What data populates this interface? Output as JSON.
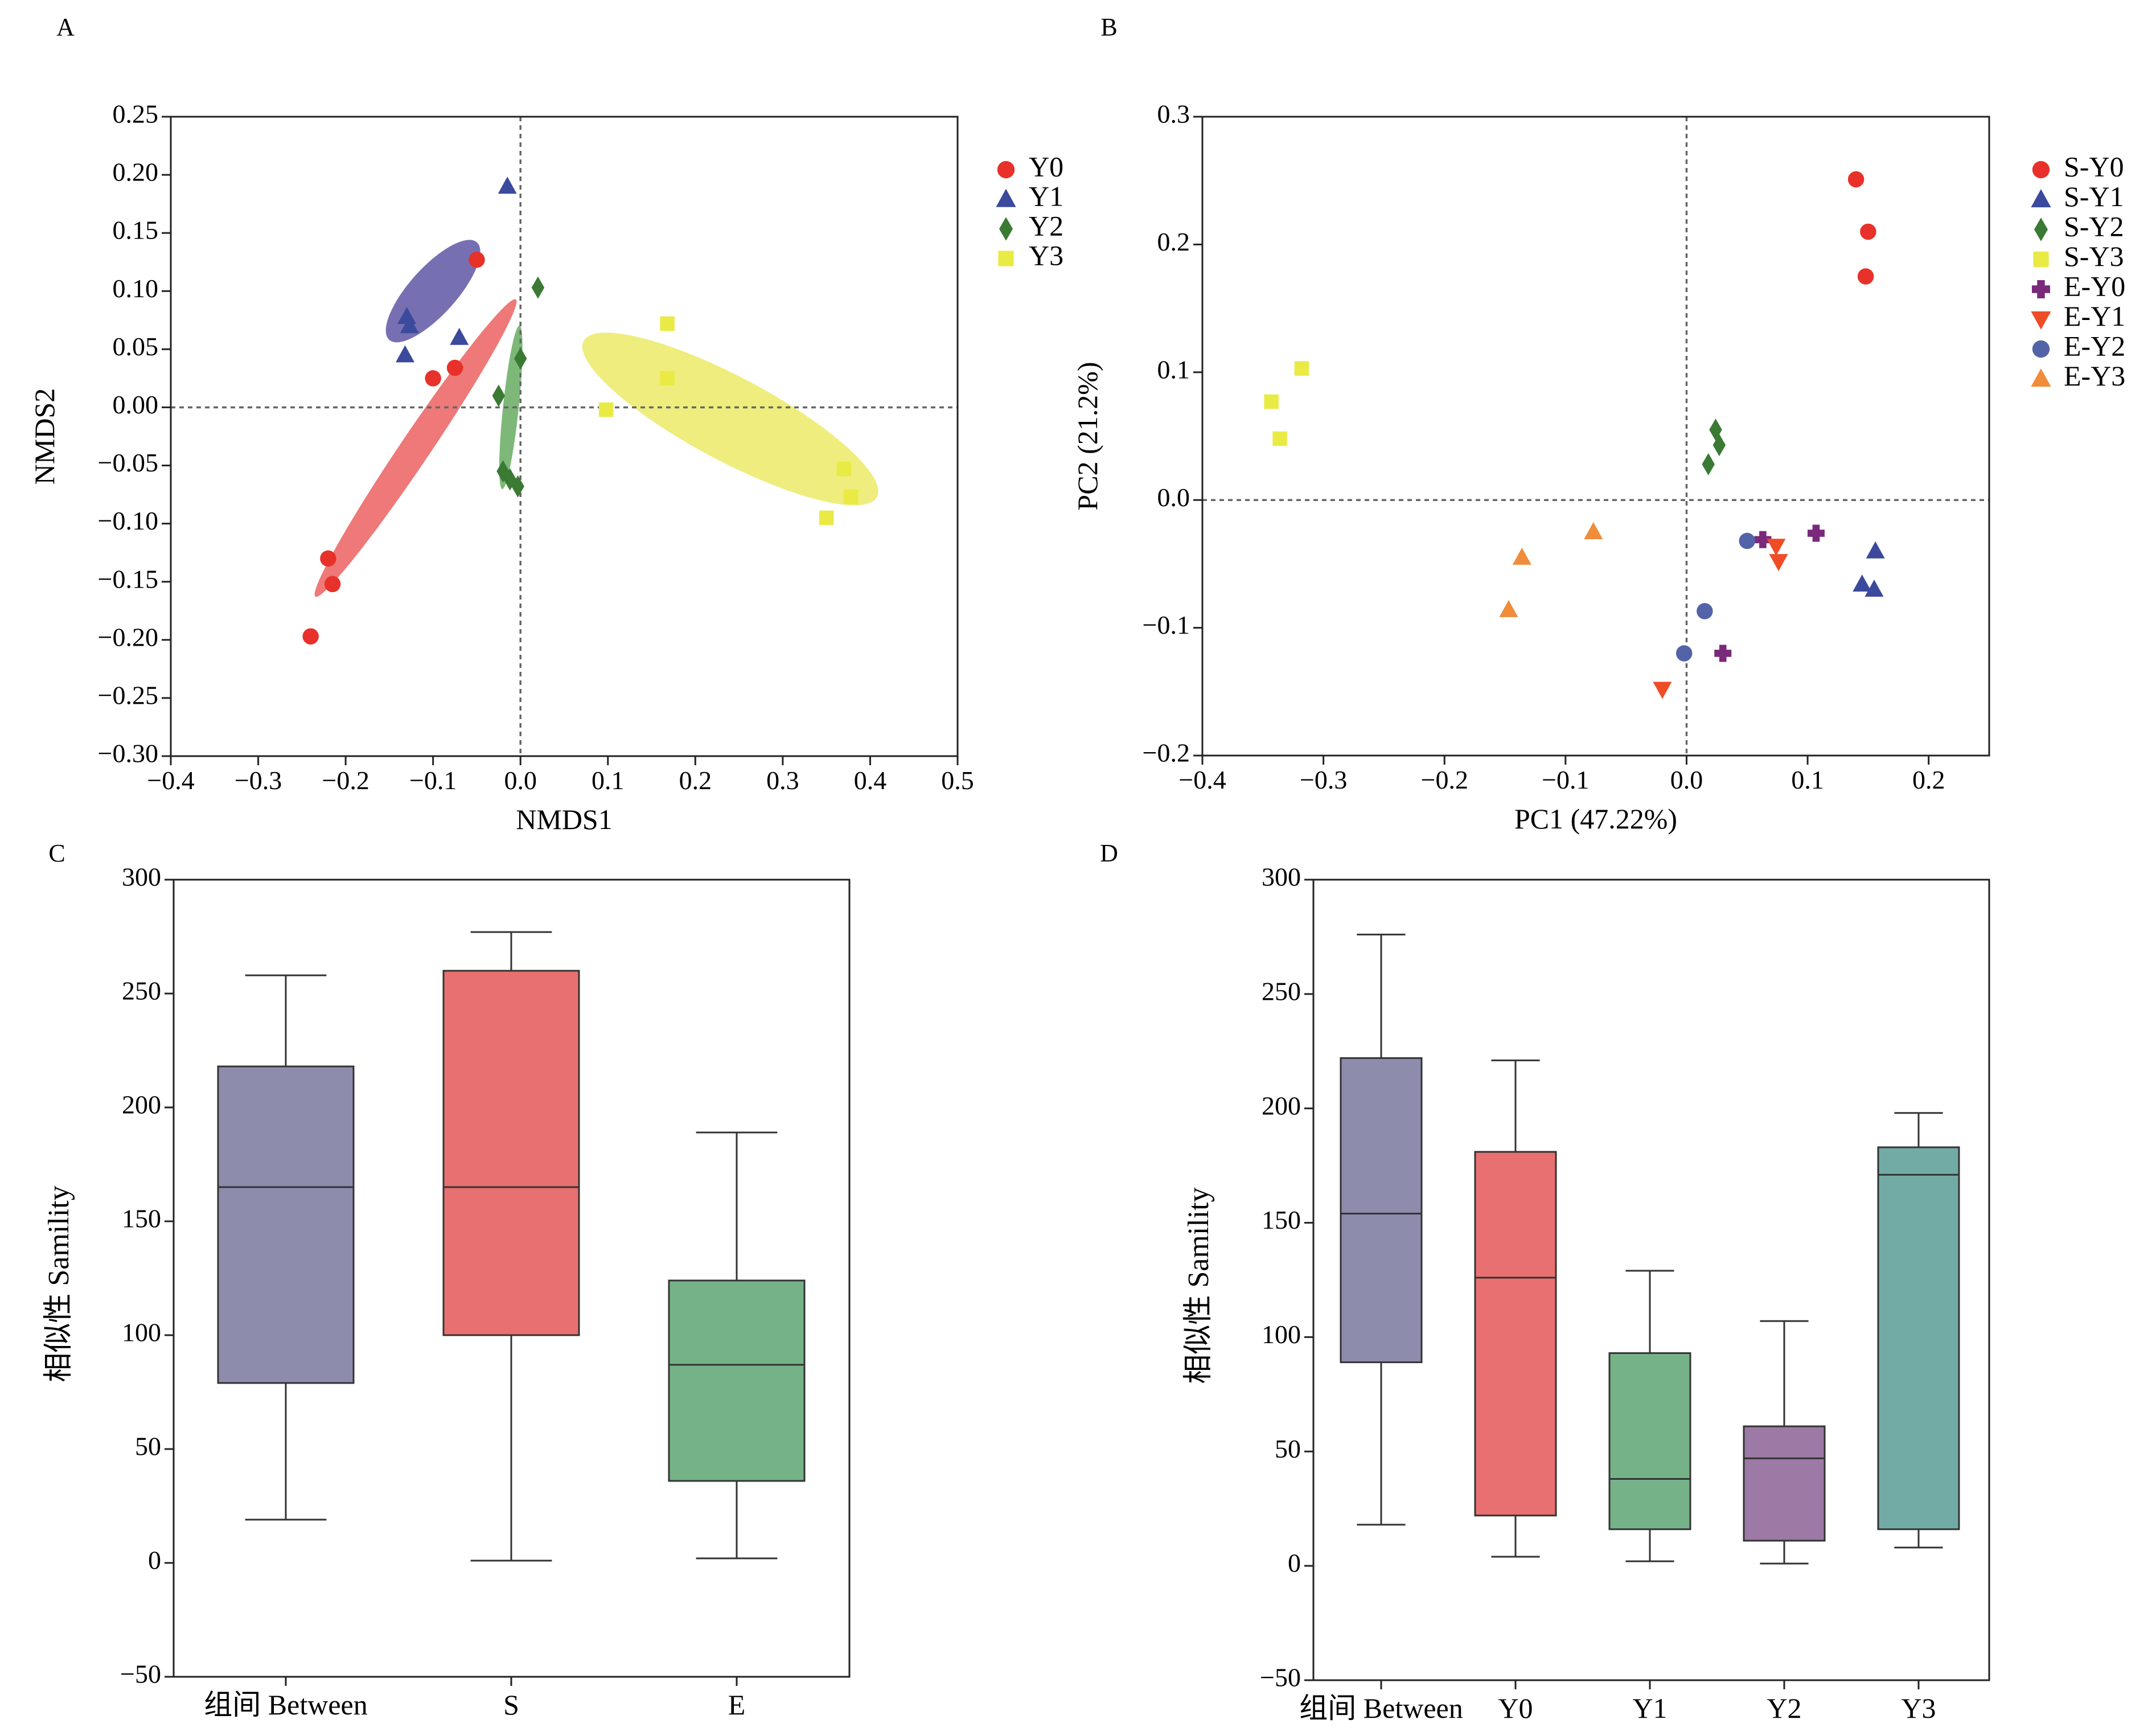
{
  "chart_data": [
    {
      "panel": "A",
      "type": "scatter",
      "xlabel": "NMDS1",
      "ylabel": "NMDS2",
      "xlim": [
        -0.4,
        0.5
      ],
      "ylim": [
        -0.3,
        0.25
      ],
      "xticks": [
        -0.4,
        -0.3,
        -0.2,
        -0.1,
        0.0,
        0.1,
        0.2,
        0.3,
        0.4,
        0.5
      ],
      "yticks": [
        0.25,
        0.2,
        0.15,
        0.1,
        0.05,
        0.0,
        -0.05,
        -0.1,
        -0.15,
        -0.2,
        -0.25,
        -0.3
      ],
      "xtick_labels": [
        "−0.4",
        "−0.3",
        "−0.2",
        "−0.1",
        "0.0",
        "0.1",
        "0.2",
        "0.3",
        "0.4",
        "0.5"
      ],
      "ytick_labels": [
        "0.25",
        "0.20",
        "0.15",
        "0.10",
        "0.05",
        "0.00",
        "−0.05",
        "−0.10",
        "−0.15",
        "−0.20",
        "−0.25",
        "−0.30"
      ],
      "legend_position": "right",
      "series": [
        {
          "name": "Y0",
          "marker": "circle",
          "color": "#e8312a",
          "ellipse_color": "#ee6d6d",
          "points": [
            [
              -0.05,
              0.127
            ],
            [
              -0.1,
              0.025
            ],
            [
              -0.075,
              0.034
            ],
            [
              -0.22,
              -0.13
            ],
            [
              -0.215,
              -0.152
            ],
            [
              -0.24,
              -0.197
            ]
          ],
          "ellipse": {
            "cx": -0.12,
            "cy": -0.035,
            "a": 0.205,
            "b": 0.017,
            "angle_deg": 56
          }
        },
        {
          "name": "Y1",
          "marker": "triangle-up",
          "color": "#3b4a9c",
          "ellipse_color": "#6a64ad",
          "points": [
            [
              -0.015,
              0.19
            ],
            [
              -0.13,
              0.078
            ],
            [
              -0.127,
              0.07
            ],
            [
              -0.132,
              0.045
            ],
            [
              -0.07,
              0.06
            ]
          ],
          "ellipse": {
            "cx": -0.1,
            "cy": 0.1,
            "a": 0.075,
            "b": 0.027,
            "angle_deg": 48
          }
        },
        {
          "name": "Y2",
          "marker": "diamond",
          "color": "#3a7a33",
          "ellipse_color": "#72b26c",
          "points": [
            [
              0.02,
              0.103
            ],
            [
              0.0,
              0.042
            ],
            [
              -0.025,
              0.01
            ],
            [
              -0.02,
              -0.055
            ],
            [
              -0.012,
              -0.062
            ],
            [
              -0.003,
              -0.068
            ]
          ],
          "ellipse": {
            "cx": -0.011,
            "cy": 0.0,
            "a": 0.094,
            "b": 0.009,
            "angle_deg": 84
          }
        },
        {
          "name": "Y3",
          "marker": "square",
          "color": "#eaea45",
          "ellipse_color": "#eeeb72",
          "points": [
            [
              0.168,
              0.072
            ],
            [
              0.168,
              0.025
            ],
            [
              0.098,
              -0.002
            ],
            [
              0.37,
              -0.053
            ],
            [
              0.378,
              -0.077
            ],
            [
              0.35,
              -0.095
            ]
          ],
          "ellipse": {
            "cx": 0.24,
            "cy": -0.01,
            "a": 0.19,
            "b": 0.048,
            "angle_deg": -28
          }
        }
      ]
    },
    {
      "panel": "B",
      "type": "scatter",
      "xlabel": "PC1 (47.22%)",
      "ylabel": "PC2 (21.2%)",
      "xlim": [
        -0.4,
        0.25
      ],
      "ylim": [
        -0.2,
        0.3
      ],
      "xticks": [
        -0.4,
        -0.3,
        -0.2,
        -0.1,
        0.0,
        0.1,
        0.2
      ],
      "yticks": [
        0.3,
        0.2,
        0.1,
        0.0,
        -0.1,
        -0.2
      ],
      "xtick_labels": [
        "−0.4",
        "−0.3",
        "−0.2",
        "−0.1",
        "0.0",
        "0.1",
        "0.2"
      ],
      "ytick_labels": [
        "0.3",
        "0.2",
        "0.1",
        "0.0",
        "−0.1",
        "−0.2"
      ],
      "legend_position": "right",
      "series": [
        {
          "name": "S-Y0",
          "marker": "circle",
          "color": "#e8312a",
          "points": [
            [
              0.14,
              0.251
            ],
            [
              0.15,
              0.21
            ],
            [
              0.148,
              0.175
            ]
          ]
        },
        {
          "name": "S-Y1",
          "marker": "triangle-up",
          "color": "#3b4a9c",
          "points": [
            [
              0.156,
              -0.04
            ],
            [
              0.145,
              -0.066
            ],
            [
              0.155,
              -0.07
            ]
          ]
        },
        {
          "name": "S-Y2",
          "marker": "diamond",
          "color": "#3a7a33",
          "points": [
            [
              0.024,
              0.055
            ],
            [
              0.027,
              0.043
            ],
            [
              0.018,
              0.028
            ]
          ]
        },
        {
          "name": "S-Y3",
          "marker": "square",
          "color": "#eaea45",
          "points": [
            [
              -0.318,
              0.103
            ],
            [
              -0.343,
              0.077
            ],
            [
              -0.336,
              0.048
            ]
          ]
        },
        {
          "name": "E-Y0",
          "marker": "plus",
          "color": "#7a2a7a",
          "points": [
            [
              0.107,
              -0.026
            ],
            [
              0.063,
              -0.031
            ],
            [
              0.03,
              -0.12
            ]
          ]
        },
        {
          "name": "E-Y1",
          "marker": "triangle-down",
          "color": "#ef4d25",
          "points": [
            [
              0.074,
              -0.036
            ],
            [
              0.076,
              -0.048
            ],
            [
              -0.02,
              -0.148
            ]
          ]
        },
        {
          "name": "E-Y2",
          "marker": "circle",
          "color": "#5363a8",
          "points": [
            [
              0.05,
              -0.032
            ],
            [
              0.015,
              -0.087
            ],
            [
              -0.002,
              -0.12
            ]
          ]
        },
        {
          "name": "E-Y3",
          "marker": "triangle-up",
          "color": "#f08c3a",
          "points": [
            [
              -0.077,
              -0.025
            ],
            [
              -0.136,
              -0.045
            ],
            [
              -0.147,
              -0.086
            ]
          ]
        }
      ]
    },
    {
      "panel": "C",
      "type": "box",
      "ylabel": "相似性  Samility",
      "ylim": [
        -50,
        300
      ],
      "yticks": [
        300,
        250,
        200,
        150,
        100,
        50,
        0,
        -50
      ],
      "ytick_labels": [
        "300",
        "250",
        "200",
        "150",
        "100",
        "50",
        "0",
        "−50"
      ],
      "categories": [
        "组间 Between",
        "S",
        "E"
      ],
      "boxes": [
        {
          "whisker_low": 19,
          "q1": 79,
          "median": 165,
          "q3": 218,
          "whisker_high": 258,
          "color": "#8d8cac"
        },
        {
          "whisker_low": 1,
          "q1": 100,
          "median": 165,
          "q3": 260,
          "whisker_high": 277,
          "color": "#e97070"
        },
        {
          "whisker_low": 2,
          "q1": 36,
          "median": 87,
          "q3": 124,
          "whisker_high": 189,
          "color": "#76b288"
        }
      ]
    },
    {
      "panel": "D",
      "type": "box",
      "ylabel": "相似性  Samility",
      "ylim": [
        -50,
        300
      ],
      "yticks": [
        300,
        250,
        200,
        150,
        100,
        50,
        0,
        -50
      ],
      "ytick_labels": [
        "300",
        "250",
        "200",
        "150",
        "100",
        "50",
        "0",
        "−50"
      ],
      "categories": [
        "组间 Between",
        "Y0",
        "Y1",
        "Y2",
        "Y3"
      ],
      "boxes": [
        {
          "whisker_low": 18,
          "q1": 89,
          "median": 154,
          "q3": 222,
          "whisker_high": 276,
          "color": "#8d8cac"
        },
        {
          "whisker_low": 4,
          "q1": 22,
          "median": 126,
          "q3": 181,
          "whisker_high": 221,
          "color": "#e97070"
        },
        {
          "whisker_low": 2,
          "q1": 16,
          "median": 38,
          "q3": 93,
          "whisker_high": 129,
          "color": "#76b288"
        },
        {
          "whisker_low": 1,
          "q1": 11,
          "median": 47,
          "q3": 61,
          "whisker_high": 107,
          "color": "#9d79a6"
        },
        {
          "whisker_low": 8,
          "q1": 16,
          "median": 171,
          "q3": 183,
          "whisker_high": 198,
          "color": "#72aba5"
        }
      ]
    }
  ]
}
